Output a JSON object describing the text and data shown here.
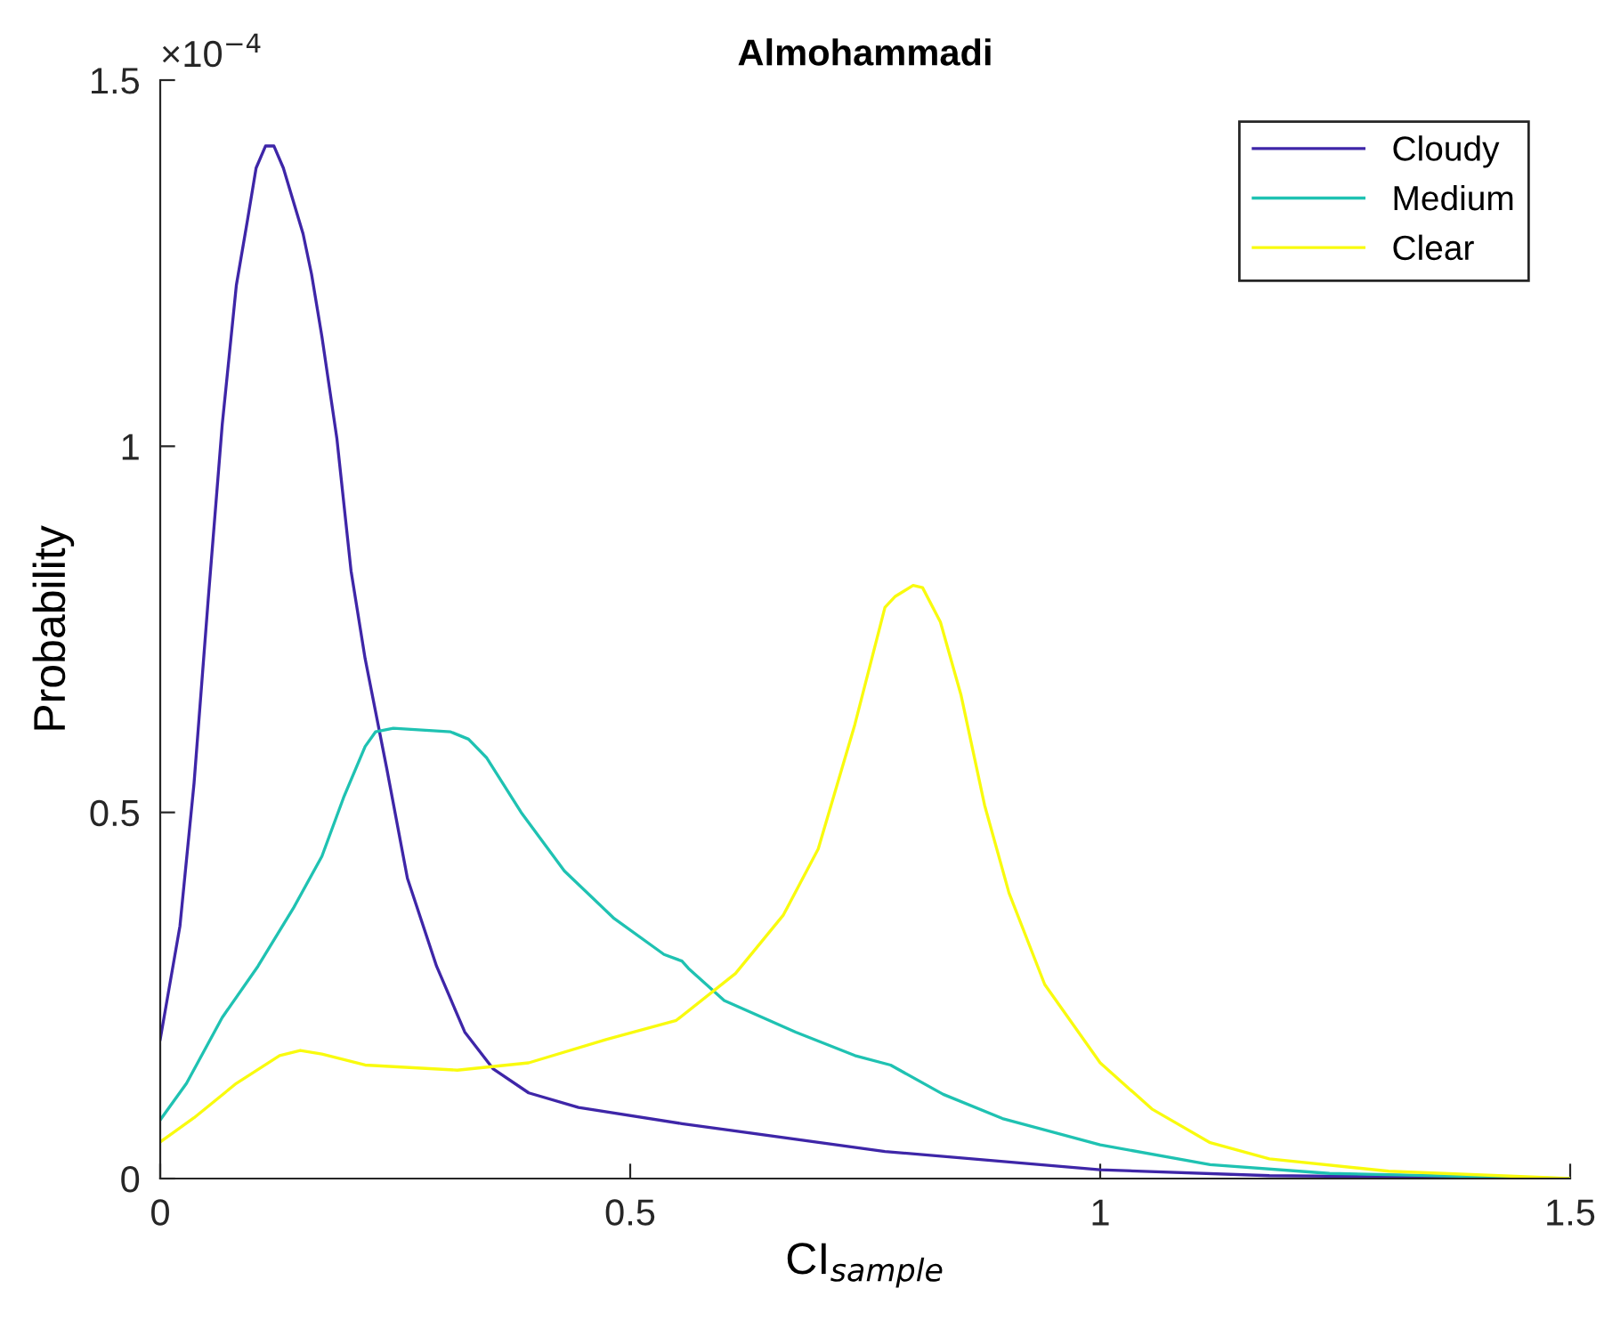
{
  "chart_data": {
    "type": "line",
    "title": "Almohammadi",
    "xlabel": "CI$_{sample}$",
    "ylabel": "Probability",
    "annotations": [
      "×10$^{−4}$"
    ],
    "xlim": [
      0,
      1.5
    ],
    "xticks": [
      0,
      0.5,
      1,
      1.5
    ],
    "ylim": [
      0,
      1.5
    ],
    "yticks": [
      0,
      0.5,
      1,
      1.5
    ],
    "grid": false,
    "legend": "top right",
    "marker": "none",
    "line_style": "solid",
    "series": [
      {
        "name": "Cloudy",
        "color": "#3e26a8",
        "x": [
          0,
          0.021,
          0.036,
          0.051,
          0.066,
          0.081,
          0.093,
          0.102,
          0.112,
          0.121,
          0.131,
          0.152,
          0.161,
          0.172,
          0.188,
          0.203,
          0.218,
          0.241,
          0.263,
          0.294,
          0.324,
          0.354,
          0.392,
          0.445,
          0.555,
          0.771,
          1.0,
          1.18,
          1.5
        ],
        "values": [
          0.19,
          0.345,
          0.54,
          0.79,
          1.03,
          1.22,
          1.31,
          1.38,
          1.41,
          1.41,
          1.38,
          1.29,
          1.235,
          1.15,
          1.01,
          0.83,
          0.71,
          0.56,
          0.41,
          0.29,
          0.2,
          0.15,
          0.117,
          0.097,
          0.075,
          0.037,
          0.012,
          0.004,
          0.0
        ]
      },
      {
        "name": "Medium",
        "color": "#1fc2b2",
        "x": [
          0,
          0.028,
          0.066,
          0.104,
          0.142,
          0.172,
          0.195,
          0.218,
          0.229,
          0.248,
          0.309,
          0.328,
          0.347,
          0.384,
          0.43,
          0.483,
          0.536,
          0.555,
          0.562,
          0.6,
          0.676,
          0.739,
          0.777,
          0.833,
          0.896,
          1.0,
          1.117,
          1.244,
          1.5
        ],
        "values": [
          0.08,
          0.13,
          0.22,
          0.29,
          0.37,
          0.44,
          0.52,
          0.59,
          0.61,
          0.615,
          0.61,
          0.6,
          0.575,
          0.5,
          0.42,
          0.355,
          0.306,
          0.297,
          0.287,
          0.243,
          0.2,
          0.168,
          0.155,
          0.115,
          0.082,
          0.046,
          0.019,
          0.007,
          0.0
        ]
      },
      {
        "name": "Clear",
        "color": "#f9fb0e",
        "x": [
          0,
          0.036,
          0.081,
          0.127,
          0.149,
          0.172,
          0.218,
          0.316,
          0.392,
          0.475,
          0.549,
          0.612,
          0.663,
          0.7,
          0.739,
          0.771,
          0.782,
          0.801,
          0.811,
          0.83,
          0.852,
          0.877,
          0.903,
          0.941,
          1.0,
          1.055,
          1.117,
          1.18,
          1.307,
          1.5
        ],
        "values": [
          0.05,
          0.083,
          0.13,
          0.168,
          0.175,
          0.17,
          0.155,
          0.148,
          0.158,
          0.19,
          0.216,
          0.28,
          0.36,
          0.45,
          0.62,
          0.78,
          0.795,
          0.81,
          0.807,
          0.76,
          0.66,
          0.51,
          0.39,
          0.265,
          0.158,
          0.095,
          0.049,
          0.027,
          0.01,
          0.0
        ]
      }
    ]
  }
}
